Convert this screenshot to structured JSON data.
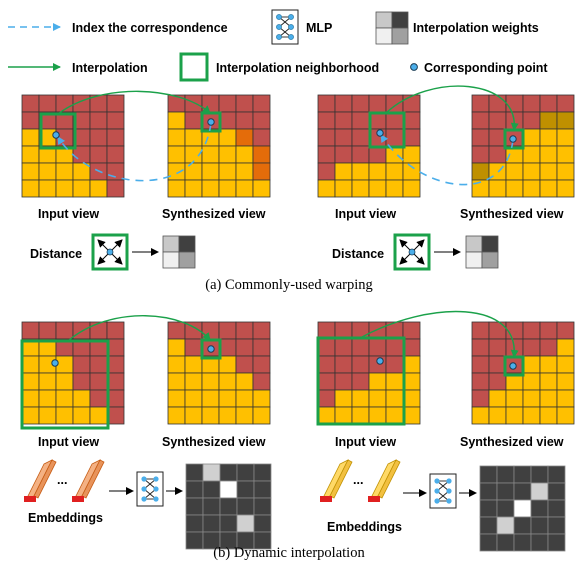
{
  "legend": {
    "index_correspondence": "Index the correspondence",
    "mlp": "MLP",
    "interpolation_weights": "Interpolation weights",
    "interpolation": "Interpolation",
    "interpolation_neighborhood": "Interpolation neighborhood",
    "corresponding_point": "Corresponding point"
  },
  "panel_a": {
    "left": {
      "input_label": "Input view",
      "synth_label": "Synthesized view",
      "distance_label": "Distance"
    },
    "right": {
      "input_label": "Input view",
      "synth_label": "Synthesized view",
      "distance_label": "Distance"
    },
    "caption": "(a) Commonly-used warping"
  },
  "panel_b": {
    "left": {
      "input_label": "Input view",
      "synth_label": "Synthesized view",
      "embeddings_label": "Embeddings",
      "ellipsis": "..."
    },
    "right": {
      "input_label": "Input view",
      "synth_label": "Synthesized view",
      "embeddings_label": "Embeddings",
      "ellipsis": "..."
    },
    "caption": "(b) Dynamic interpolation"
  },
  "colors": {
    "red_cell": "#C0504D",
    "yellow_cell": "#FFC000",
    "orange_cell": "#E46C0A",
    "olive_cell": "#BF9000",
    "neighborhood_green": "#1BA14A",
    "index_arrow_blue": "#4BAEEA",
    "point_fill": "#4BAEEA",
    "weight_dark": "#404040",
    "weight_light": "#D0D0D0"
  },
  "icons": [
    "mlp-icon",
    "interpolation-weights-icon",
    "corresponding-point-icon",
    "embedding-stack-icon"
  ]
}
